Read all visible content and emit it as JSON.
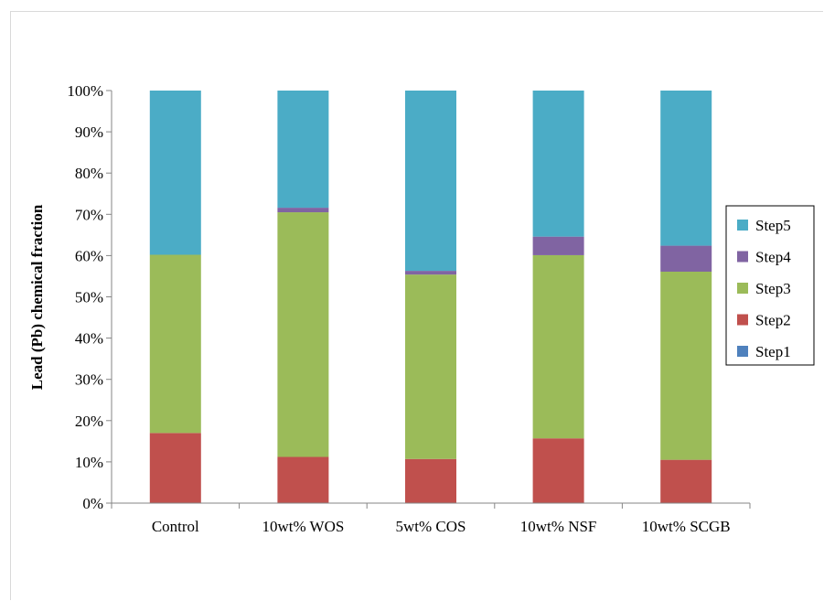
{
  "chart_data": {
    "type": "bar",
    "stacked": true,
    "percent": true,
    "title": "",
    "xlabel": "",
    "ylabel": "Lead (Pb) chemical fraction",
    "ylim": [
      0,
      100
    ],
    "yticks": [
      "0%",
      "10%",
      "20%",
      "30%",
      "40%",
      "50%",
      "60%",
      "70%",
      "80%",
      "90%",
      "100%"
    ],
    "categories": [
      "Control",
      "10wt% WOS",
      "5wt% COS",
      "10wt% NSF",
      "10wt% SCGB"
    ],
    "series": [
      {
        "name": "Step1",
        "color": "#4f81bd",
        "values": [
          0,
          0,
          0,
          0,
          0
        ]
      },
      {
        "name": "Step2",
        "color": "#c0504d",
        "values": [
          17,
          11.2,
          10.7,
          15.7,
          10.5
        ]
      },
      {
        "name": "Step3",
        "color": "#9bbb59",
        "values": [
          43.2,
          59.3,
          44.7,
          44.4,
          45.6
        ]
      },
      {
        "name": "Step4",
        "color": "#8064a2",
        "values": [
          0,
          1.1,
          0.9,
          4.5,
          6.3
        ]
      },
      {
        "name": "Step5",
        "color": "#4bacc6",
        "values": [
          39.8,
          28.4,
          43.7,
          35.4,
          37.6
        ]
      }
    ],
    "grid": false,
    "legend_position": "right"
  }
}
